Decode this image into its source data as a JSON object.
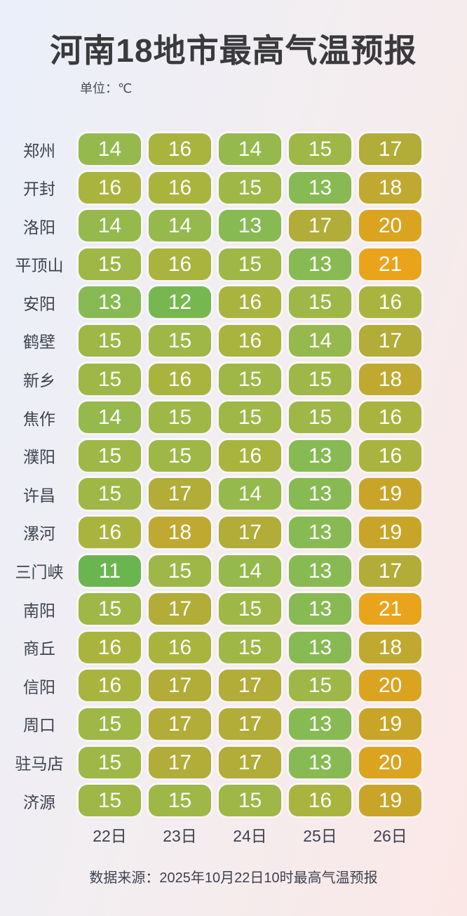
{
  "title": "河南18地市最高气温预报",
  "unit_label": "单位：℃",
  "footer": "数据来源：2025年10月22日10时最高气温预报",
  "chart_data": {
    "type": "heatmap",
    "title": "河南18地市最高气温预报",
    "unit": "℃",
    "columns": [
      "22日",
      "23日",
      "24日",
      "25日",
      "26日"
    ],
    "rows": [
      {
        "city": "郑州",
        "temps": [
          14,
          16,
          14,
          15,
          17
        ]
      },
      {
        "city": "开封",
        "temps": [
          16,
          16,
          15,
          13,
          18
        ]
      },
      {
        "city": "洛阳",
        "temps": [
          14,
          14,
          13,
          17,
          20
        ]
      },
      {
        "city": "平顶山",
        "temps": [
          15,
          16,
          15,
          13,
          21
        ]
      },
      {
        "city": "安阳",
        "temps": [
          13,
          12,
          16,
          15,
          16
        ]
      },
      {
        "city": "鹤壁",
        "temps": [
          15,
          15,
          16,
          14,
          17
        ]
      },
      {
        "city": "新乡",
        "temps": [
          15,
          16,
          15,
          15,
          18
        ]
      },
      {
        "city": "焦作",
        "temps": [
          14,
          15,
          15,
          15,
          16
        ]
      },
      {
        "city": "濮阳",
        "temps": [
          15,
          15,
          16,
          13,
          16
        ]
      },
      {
        "city": "许昌",
        "temps": [
          15,
          17,
          14,
          13,
          19
        ]
      },
      {
        "city": "漯河",
        "temps": [
          16,
          18,
          17,
          13,
          19
        ]
      },
      {
        "city": "三门峡",
        "temps": [
          11,
          15,
          14,
          13,
          17
        ]
      },
      {
        "city": "南阳",
        "temps": [
          15,
          17,
          15,
          13,
          21
        ]
      },
      {
        "city": "商丘",
        "temps": [
          16,
          16,
          15,
          13,
          18
        ]
      },
      {
        "city": "信阳",
        "temps": [
          16,
          17,
          17,
          15,
          20
        ]
      },
      {
        "city": "周口",
        "temps": [
          15,
          17,
          17,
          13,
          19
        ]
      },
      {
        "city": "驻马店",
        "temps": [
          15,
          17,
          17,
          13,
          20
        ]
      },
      {
        "city": "济源",
        "temps": [
          15,
          15,
          15,
          16,
          19
        ]
      }
    ],
    "value_range": [
      11,
      21
    ],
    "source": "2025年10月22日10时最高气温预报",
    "colors": {
      "11": "#6bb551",
      "12": "#77b750",
      "13": "#88ba54",
      "14": "#95b94c",
      "15": "#9eb746",
      "16": "#a9b43f",
      "17": "#b2ac38",
      "18": "#bfa930",
      "19": "#c8a528",
      "20": "#daa420",
      "21": "#e9a41c"
    }
  }
}
